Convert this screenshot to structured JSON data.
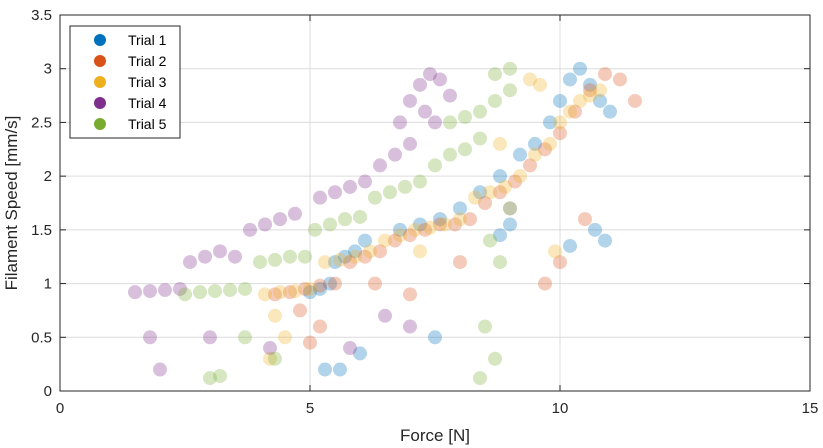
{
  "chart_data": {
    "type": "scatter",
    "title": "",
    "xlabel": "Force [N]",
    "ylabel": "Filament Speed [mm/s]",
    "xlim": [
      0,
      15
    ],
    "ylim": [
      0,
      3.5
    ],
    "x_ticks": [
      "0",
      "5",
      "10",
      "15"
    ],
    "y_ticks": [
      "0",
      "0.5",
      "1",
      "1.5",
      "2",
      "2.5",
      "3",
      "3.5"
    ],
    "x_tick_values": [
      0,
      5,
      10,
      15
    ],
    "y_tick_values": [
      0,
      0.5,
      1,
      1.5,
      2,
      2.5,
      3,
      3.5
    ],
    "grid": true,
    "legend_position": "top-left",
    "series": [
      {
        "name": "Trial 1",
        "color": "#0072BD",
        "points": [
          [
            5.0,
            0.92
          ],
          [
            5.2,
            0.95
          ],
          [
            5.4,
            1.0
          ],
          [
            5.5,
            1.2
          ],
          [
            5.7,
            1.25
          ],
          [
            5.9,
            1.3
          ],
          [
            6.1,
            1.4
          ],
          [
            6.8,
            1.5
          ],
          [
            7.2,
            1.55
          ],
          [
            7.6,
            1.6
          ],
          [
            8.0,
            1.7
          ],
          [
            8.4,
            1.85
          ],
          [
            8.8,
            2.0
          ],
          [
            9.0,
            1.7
          ],
          [
            9.2,
            2.2
          ],
          [
            9.5,
            2.3
          ],
          [
            9.8,
            2.5
          ],
          [
            10.0,
            2.7
          ],
          [
            10.2,
            2.9
          ],
          [
            10.4,
            3.0
          ],
          [
            10.6,
            2.85
          ],
          [
            10.8,
            2.7
          ],
          [
            11.0,
            2.6
          ],
          [
            10.7,
            1.5
          ],
          [
            10.9,
            1.4
          ],
          [
            10.2,
            1.35
          ],
          [
            9.0,
            1.55
          ],
          [
            8.8,
            1.45
          ],
          [
            5.6,
            0.2
          ],
          [
            5.3,
            0.2
          ],
          [
            7.5,
            0.5
          ],
          [
            6.0,
            0.35
          ]
        ]
      },
      {
        "name": "Trial 2",
        "color": "#D95319",
        "points": [
          [
            4.3,
            0.9
          ],
          [
            4.6,
            0.92
          ],
          [
            4.9,
            0.95
          ],
          [
            5.2,
            0.98
          ],
          [
            5.5,
            1.0
          ],
          [
            5.8,
            1.2
          ],
          [
            6.1,
            1.25
          ],
          [
            6.4,
            1.3
          ],
          [
            6.7,
            1.4
          ],
          [
            7.0,
            1.45
          ],
          [
            7.3,
            1.5
          ],
          [
            7.6,
            1.55
          ],
          [
            7.9,
            1.55
          ],
          [
            8.2,
            1.6
          ],
          [
            8.5,
            1.75
          ],
          [
            8.8,
            1.85
          ],
          [
            9.1,
            1.95
          ],
          [
            9.4,
            2.1
          ],
          [
            9.7,
            2.25
          ],
          [
            10.0,
            2.4
          ],
          [
            10.3,
            2.6
          ],
          [
            10.6,
            2.8
          ],
          [
            10.9,
            2.95
          ],
          [
            11.2,
            2.9
          ],
          [
            11.5,
            2.7
          ],
          [
            10.5,
            1.6
          ],
          [
            10.0,
            1.2
          ],
          [
            9.7,
            1.0
          ],
          [
            5.2,
            0.6
          ],
          [
            4.8,
            0.75
          ],
          [
            5.0,
            0.45
          ],
          [
            6.3,
            1.0
          ],
          [
            7.0,
            0.9
          ],
          [
            8.0,
            1.2
          ]
        ]
      },
      {
        "name": "Trial 3",
        "color": "#EDB120",
        "points": [
          [
            4.1,
            0.9
          ],
          [
            4.4,
            0.92
          ],
          [
            4.7,
            0.93
          ],
          [
            5.0,
            0.95
          ],
          [
            5.3,
            1.2
          ],
          [
            5.6,
            1.22
          ],
          [
            5.9,
            1.25
          ],
          [
            6.2,
            1.3
          ],
          [
            6.5,
            1.4
          ],
          [
            6.8,
            1.45
          ],
          [
            7.1,
            1.5
          ],
          [
            7.4,
            1.52
          ],
          [
            7.7,
            1.55
          ],
          [
            8.0,
            1.6
          ],
          [
            8.3,
            1.8
          ],
          [
            8.6,
            1.85
          ],
          [
            8.9,
            1.9
          ],
          [
            9.2,
            2.0
          ],
          [
            9.5,
            2.2
          ],
          [
            9.8,
            2.3
          ],
          [
            10.0,
            2.5
          ],
          [
            10.2,
            2.6
          ],
          [
            10.4,
            2.7
          ],
          [
            10.6,
            2.75
          ],
          [
            10.8,
            2.8
          ],
          [
            9.4,
            2.9
          ],
          [
            9.6,
            2.85
          ],
          [
            8.8,
            2.3
          ],
          [
            4.3,
            0.7
          ],
          [
            4.5,
            0.5
          ],
          [
            4.2,
            0.3
          ],
          [
            7.2,
            1.3
          ],
          [
            9.9,
            1.3
          ],
          [
            9.0,
            1.7
          ]
        ]
      },
      {
        "name": "Trial 4",
        "color": "#7E2F8E",
        "points": [
          [
            1.5,
            0.92
          ],
          [
            1.8,
            0.93
          ],
          [
            2.1,
            0.94
          ],
          [
            2.4,
            0.95
          ],
          [
            2.6,
            1.2
          ],
          [
            2.9,
            1.25
          ],
          [
            3.2,
            1.3
          ],
          [
            3.5,
            1.25
          ],
          [
            3.8,
            1.5
          ],
          [
            4.1,
            1.55
          ],
          [
            4.4,
            1.6
          ],
          [
            4.7,
            1.65
          ],
          [
            5.2,
            1.8
          ],
          [
            5.5,
            1.85
          ],
          [
            5.8,
            1.9
          ],
          [
            6.1,
            1.95
          ],
          [
            6.4,
            2.1
          ],
          [
            6.7,
            2.2
          ],
          [
            7.0,
            2.3
          ],
          [
            6.8,
            2.5
          ],
          [
            7.0,
            2.7
          ],
          [
            7.2,
            2.85
          ],
          [
            7.4,
            2.95
          ],
          [
            7.6,
            2.9
          ],
          [
            7.8,
            2.75
          ],
          [
            7.5,
            2.5
          ],
          [
            7.3,
            2.6
          ],
          [
            2.0,
            0.2
          ],
          [
            1.8,
            0.5
          ],
          [
            3.0,
            0.5
          ],
          [
            4.2,
            0.4
          ],
          [
            5.8,
            0.4
          ],
          [
            6.5,
            0.7
          ],
          [
            7.0,
            0.6
          ]
        ]
      },
      {
        "name": "Trial 5",
        "color": "#77AC30",
        "points": [
          [
            2.5,
            0.9
          ],
          [
            2.8,
            0.92
          ],
          [
            3.1,
            0.93
          ],
          [
            3.4,
            0.94
          ],
          [
            3.7,
            0.95
          ],
          [
            4.0,
            1.2
          ],
          [
            4.3,
            1.22
          ],
          [
            4.6,
            1.25
          ],
          [
            4.9,
            1.25
          ],
          [
            5.1,
            1.5
          ],
          [
            5.4,
            1.55
          ],
          [
            5.7,
            1.6
          ],
          [
            6.0,
            1.62
          ],
          [
            6.3,
            1.8
          ],
          [
            6.6,
            1.85
          ],
          [
            6.9,
            1.9
          ],
          [
            7.2,
            1.95
          ],
          [
            7.5,
            2.1
          ],
          [
            7.8,
            2.2
          ],
          [
            8.1,
            2.25
          ],
          [
            8.4,
            2.35
          ],
          [
            7.8,
            2.5
          ],
          [
            8.1,
            2.55
          ],
          [
            8.4,
            2.6
          ],
          [
            8.7,
            2.7
          ],
          [
            9.0,
            2.8
          ],
          [
            8.7,
            2.95
          ],
          [
            9.0,
            3.0
          ],
          [
            8.6,
            1.4
          ],
          [
            8.8,
            1.2
          ],
          [
            8.5,
            0.6
          ],
          [
            8.7,
            0.3
          ],
          [
            8.4,
            0.12
          ],
          [
            3.0,
            0.12
          ],
          [
            3.2,
            0.14
          ],
          [
            4.3,
            0.3
          ],
          [
            3.7,
            0.5
          ]
        ]
      }
    ]
  }
}
